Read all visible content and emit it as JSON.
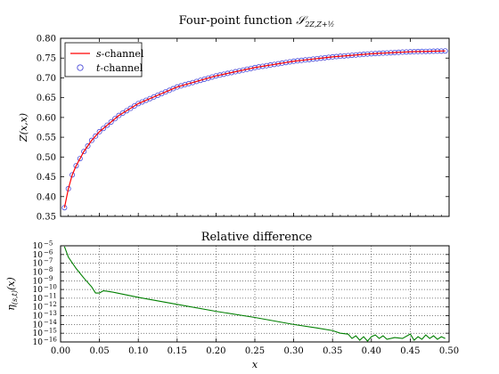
{
  "chart_data": [
    {
      "type": "line",
      "title": "Four-point function 𝒮_{2Z,Z+½}",
      "title_main": "Four-point function ",
      "title_symbol": "𝒮",
      "title_sub": "2Z,Z+½",
      "xlabel": "",
      "ylabel": "Z(x,x)",
      "xlim": [
        0.0,
        0.5
      ],
      "ylim": [
        0.35,
        0.8
      ],
      "yticks": [
        "0.35",
        "0.40",
        "0.45",
        "0.50",
        "0.55",
        "0.60",
        "0.65",
        "0.70",
        "0.75",
        "0.80"
      ],
      "legend_position": "top-left",
      "series": [
        {
          "name": "s-channel",
          "name_italic": "s",
          "name_rest": "-channel",
          "style": "line",
          "color": "#ff0000"
        },
        {
          "name": "t-channel",
          "name_italic": "t",
          "name_rest": "-channel",
          "style": "circle-markers",
          "color": "#4a4ad8"
        }
      ],
      "curve": {
        "x": [
          0.005,
          0.01,
          0.015,
          0.02,
          0.03,
          0.04,
          0.05,
          0.075,
          0.1,
          0.15,
          0.2,
          0.25,
          0.3,
          0.35,
          0.4,
          0.45,
          0.495
        ],
        "y": [
          0.372,
          0.42,
          0.455,
          0.478,
          0.514,
          0.542,
          0.564,
          0.605,
          0.635,
          0.677,
          0.705,
          0.726,
          0.742,
          0.753,
          0.761,
          0.766,
          0.768
        ]
      },
      "marker_x_start": 0.005,
      "marker_x_step": 0.005,
      "marker_count": 99
    },
    {
      "type": "line",
      "title": "Relative difference",
      "xlabel": "x",
      "ylabel": "η_{(s,t)}(x)",
      "ylabel_main": "η",
      "ylabel_sub": "(s,t)",
      "ylabel_tail": "(x)",
      "xlim": [
        0.0,
        0.5
      ],
      "xticks": [
        "0.00",
        "0.05",
        "0.10",
        "0.15",
        "0.20",
        "0.25",
        "0.30",
        "0.35",
        "0.40",
        "0.45",
        "0.50"
      ],
      "ylim_log10": [
        -16,
        -5
      ],
      "yscale": "log",
      "ytick_exponents": [
        "-5",
        "-6",
        "-7",
        "-8",
        "-9",
        "-10",
        "-11",
        "-12",
        "-13",
        "-14",
        "-15",
        "-16"
      ],
      "grid": true,
      "series": [
        {
          "color": "#007f00",
          "x": [
            0.005,
            0.01,
            0.02,
            0.03,
            0.04,
            0.045,
            0.05,
            0.055,
            0.06,
            0.07,
            0.1,
            0.15,
            0.2,
            0.25,
            0.3,
            0.33,
            0.35,
            0.36,
            0.37,
            0.375,
            0.38,
            0.385,
            0.39,
            0.395,
            0.4,
            0.405,
            0.41,
            0.415,
            0.42,
            0.43,
            0.44,
            0.45,
            0.455,
            0.46,
            0.465,
            0.47,
            0.475,
            0.48,
            0.485,
            0.49,
            0.495
          ],
          "log10_y": [
            -5.1,
            -6.3,
            -7.6,
            -8.7,
            -9.7,
            -10.4,
            -10.4,
            -10.15,
            -10.2,
            -10.35,
            -10.9,
            -11.7,
            -12.5,
            -13.2,
            -14.0,
            -14.4,
            -14.7,
            -15.0,
            -15.1,
            -15.6,
            -15.3,
            -15.8,
            -15.4,
            -15.9,
            -15.4,
            -15.2,
            -15.6,
            -15.3,
            -15.7,
            -15.5,
            -15.6,
            -15.1,
            -15.8,
            -15.4,
            -15.7,
            -15.2,
            -15.6,
            -15.3,
            -15.7,
            -15.4,
            -15.6
          ]
        }
      ]
    }
  ]
}
